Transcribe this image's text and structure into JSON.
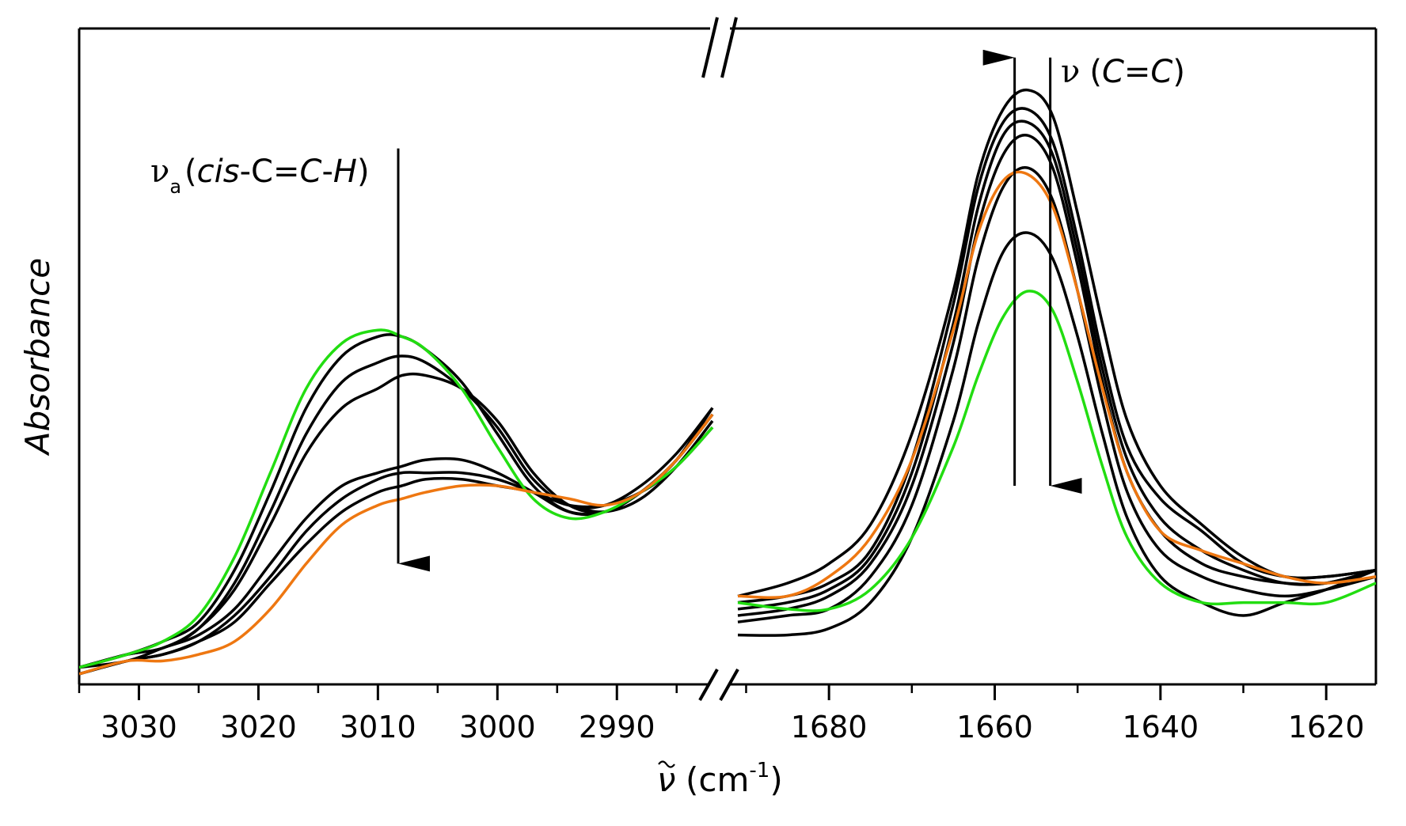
{
  "chart_data": {
    "type": "line",
    "title": "",
    "ylabel": "Absorbance",
    "xlabel": {
      "symbol": "ν",
      "unit_open": "(cm",
      "unit_exp": "-1",
      "unit_close": ")"
    },
    "colors": {
      "black": "#000000",
      "green": "#22dd11",
      "orange": "#ee7711"
    },
    "panels": [
      {
        "id": "left",
        "xlim": [
          3035,
          2982
        ],
        "ticks": [
          3030,
          3020,
          3010,
          3000,
          2990
        ],
        "tick_labels": [
          "3030",
          "3020",
          "3010",
          "3000",
          "2990"
        ],
        "annotation": {
          "nu": "ν",
          "sub": "a",
          "open": "(",
          "cis": "cis",
          "mid": "-C=",
          "c2": "C",
          "dash": "-",
          "h": "H",
          "close": ")"
        },
        "arrow": {
          "x": 3008.3,
          "from": 0.82,
          "to": 0.18,
          "direction": "down"
        },
        "series": [
          {
            "name": "green",
            "color": "green",
            "x": [
              3035,
              3031,
              3028,
              3025,
              3022,
              3019,
              3016,
              3013,
              3010,
              3008,
              3006,
              3003,
              3000,
              2997,
              2994,
              2991,
              2988,
              2985,
              2982
            ],
            "y": [
              0.02,
              0.04,
              0.06,
              0.1,
              0.19,
              0.32,
              0.45,
              0.52,
              0.54,
              0.53,
              0.51,
              0.45,
              0.36,
              0.28,
              0.25,
              0.26,
              0.29,
              0.33,
              0.39
            ]
          },
          {
            "name": "black-1",
            "color": "black",
            "x": [
              3035,
              3031,
              3028,
              3025,
              3022,
              3019,
              3016,
              3013,
              3010,
              3008,
              3006,
              3003,
              3000,
              2997,
              2994,
              2991,
              2988,
              2985,
              2982
            ],
            "y": [
              0.02,
              0.04,
              0.06,
              0.09,
              0.17,
              0.29,
              0.42,
              0.5,
              0.53,
              0.53,
              0.51,
              0.46,
              0.38,
              0.3,
              0.26,
              0.26,
              0.29,
              0.34,
              0.42
            ]
          },
          {
            "name": "black-2",
            "color": "black",
            "x": [
              3035,
              3031,
              3028,
              3025,
              3022,
              3019,
              3016,
              3013,
              3010,
              3008,
              3006,
              3003,
              3000,
              2997,
              2994,
              2991,
              2988,
              2985,
              2982
            ],
            "y": [
              0.02,
              0.04,
              0.05,
              0.08,
              0.15,
              0.26,
              0.38,
              0.46,
              0.49,
              0.5,
              0.49,
              0.45,
              0.39,
              0.31,
              0.27,
              0.27,
              0.3,
              0.35,
              0.42
            ]
          },
          {
            "name": "black-3",
            "color": "black",
            "x": [
              3035,
              3031,
              3028,
              3025,
              3022,
              3019,
              3016,
              3013,
              3010,
              3008,
              3006,
              3003,
              3000,
              2997,
              2994,
              2991,
              2988,
              2985,
              2982
            ],
            "y": [
              0.02,
              0.04,
              0.05,
              0.08,
              0.14,
              0.24,
              0.35,
              0.42,
              0.45,
              0.47,
              0.47,
              0.45,
              0.4,
              0.32,
              0.27,
              0.26,
              0.29,
              0.34,
              0.41
            ]
          },
          {
            "name": "black-4",
            "color": "black",
            "x": [
              3035,
              3031,
              3028,
              3025,
              3022,
              3019,
              3016,
              3013,
              3010,
              3008,
              3006,
              3003,
              3000,
              2997,
              2994,
              2991,
              2988,
              2985,
              2982
            ],
            "y": [
              0.02,
              0.03,
              0.05,
              0.07,
              0.11,
              0.18,
              0.25,
              0.3,
              0.32,
              0.33,
              0.34,
              0.34,
              0.32,
              0.29,
              0.26,
              0.26,
              0.29,
              0.34,
              0.41
            ]
          },
          {
            "name": "black-5",
            "color": "black",
            "x": [
              3035,
              3031,
              3028,
              3025,
              3022,
              3019,
              3016,
              3013,
              3010,
              3008,
              3006,
              3003,
              3000,
              2997,
              2994,
              2991,
              2988,
              2985,
              2982
            ],
            "y": [
              0.01,
              0.03,
              0.04,
              0.06,
              0.1,
              0.16,
              0.23,
              0.28,
              0.31,
              0.32,
              0.32,
              0.32,
              0.31,
              0.29,
              0.27,
              0.26,
              0.28,
              0.33,
              0.4
            ]
          },
          {
            "name": "black-6",
            "color": "black",
            "x": [
              3035,
              3031,
              3028,
              3025,
              3022,
              3019,
              3016,
              3013,
              3010,
              3008,
              3006,
              3003,
              3000,
              2997,
              2994,
              2991,
              2988,
              2985,
              2982
            ],
            "y": [
              0.01,
              0.03,
              0.04,
              0.06,
              0.09,
              0.15,
              0.21,
              0.26,
              0.29,
              0.3,
              0.31,
              0.31,
              0.3,
              0.29,
              0.27,
              0.27,
              0.29,
              0.33,
              0.39
            ]
          },
          {
            "name": "orange",
            "color": "orange",
            "x": [
              3035,
              3031,
              3028,
              3025,
              3022,
              3019,
              3016,
              3013,
              3010,
              3008,
              3006,
              3003,
              3000,
              2997,
              2994,
              2991,
              2988,
              2985,
              2982
            ],
            "y": [
              0.01,
              0.03,
              0.03,
              0.04,
              0.06,
              0.11,
              0.18,
              0.24,
              0.27,
              0.28,
              0.29,
              0.3,
              0.3,
              0.29,
              0.28,
              0.27,
              0.29,
              0.34,
              0.41
            ]
          }
        ]
      },
      {
        "id": "right",
        "xlim": [
          1691,
          1614
        ],
        "ticks": [
          1680,
          1660,
          1640,
          1620
        ],
        "tick_labels": [
          "1680",
          "1660",
          "1640",
          "1620"
        ],
        "annotation": {
          "nu": "ν",
          "open": "(",
          "c1": "C",
          "eq": "=",
          "c2": "C",
          "close": ")"
        },
        "arrows": [
          {
            "x": 1657.6,
            "from": 0.3,
            "to": 0.96,
            "direction": "up"
          },
          {
            "x": 1653.3,
            "from": 0.96,
            "to": 0.3,
            "direction": "down"
          }
        ],
        "series": [
          {
            "name": "green",
            "color": "green",
            "x": [
              1691,
              1685,
              1680,
              1675,
              1670,
              1665,
              1662,
              1659,
              1656,
              1653,
              1650,
              1647,
              1644,
              1640,
              1635,
              1630,
              1625,
              1620,
              1614
            ],
            "y": [
              0.12,
              0.11,
              0.11,
              0.14,
              0.22,
              0.36,
              0.47,
              0.56,
              0.6,
              0.57,
              0.46,
              0.33,
              0.22,
              0.15,
              0.12,
              0.12,
              0.12,
              0.12,
              0.15
            ]
          },
          {
            "name": "black-1",
            "color": "black",
            "x": [
              1691,
              1685,
              1680,
              1675,
              1670,
              1665,
              1662,
              1659,
              1656,
              1653,
              1650,
              1647,
              1644,
              1640,
              1635,
              1630,
              1625,
              1620,
              1614
            ],
            "y": [
              0.07,
              0.07,
              0.08,
              0.12,
              0.22,
              0.4,
              0.55,
              0.66,
              0.69,
              0.65,
              0.53,
              0.38,
              0.25,
              0.16,
              0.12,
              0.1,
              0.12,
              0.14,
              0.17
            ]
          },
          {
            "name": "black-2",
            "color": "black",
            "x": [
              1691,
              1685,
              1680,
              1675,
              1670,
              1665,
              1662,
              1659,
              1656,
              1653,
              1650,
              1647,
              1644,
              1640,
              1635,
              1630,
              1625,
              1620,
              1614
            ],
            "y": [
              0.09,
              0.1,
              0.11,
              0.16,
              0.27,
              0.48,
              0.65,
              0.76,
              0.79,
              0.74,
              0.6,
              0.43,
              0.29,
              0.2,
              0.16,
              0.14,
              0.13,
              0.14,
              0.16
            ]
          },
          {
            "name": "black-3",
            "color": "black",
            "x": [
              1691,
              1685,
              1680,
              1675,
              1670,
              1665,
              1662,
              1659,
              1656,
              1653,
              1650,
              1647,
              1644,
              1640,
              1635,
              1630,
              1625,
              1620,
              1614
            ],
            "y": [
              0.1,
              0.11,
              0.13,
              0.18,
              0.3,
              0.52,
              0.7,
              0.81,
              0.84,
              0.79,
              0.64,
              0.46,
              0.32,
              0.23,
              0.18,
              0.16,
              0.15,
              0.15,
              0.17
            ]
          },
          {
            "name": "black-4",
            "color": "black",
            "x": [
              1691,
              1685,
              1680,
              1675,
              1670,
              1665,
              1662,
              1659,
              1656,
              1653,
              1650,
              1647,
              1644,
              1640,
              1635,
              1630,
              1625,
              1620,
              1614
            ],
            "y": [
              0.11,
              0.12,
              0.14,
              0.19,
              0.32,
              0.55,
              0.73,
              0.84,
              0.86,
              0.81,
              0.66,
              0.48,
              0.34,
              0.25,
              0.2,
              0.17,
              0.15,
              0.15,
              0.17
            ]
          },
          {
            "name": "black-5",
            "color": "black",
            "x": [
              1691,
              1685,
              1680,
              1675,
              1670,
              1665,
              1662,
              1659,
              1656,
              1653,
              1650,
              1647,
              1644,
              1640,
              1635,
              1630,
              1625,
              1620,
              1614
            ],
            "y": [
              0.12,
              0.13,
              0.15,
              0.2,
              0.34,
              0.58,
              0.76,
              0.86,
              0.88,
              0.83,
              0.68,
              0.5,
              0.36,
              0.28,
              0.23,
              0.18,
              0.16,
              0.16,
              0.17
            ]
          },
          {
            "name": "black-6",
            "color": "black",
            "x": [
              1691,
              1685,
              1680,
              1675,
              1670,
              1665,
              1662,
              1659,
              1656,
              1653,
              1650,
              1647,
              1644,
              1640,
              1635,
              1630,
              1625,
              1620,
              1614
            ],
            "y": [
              0.13,
              0.15,
              0.18,
              0.24,
              0.38,
              0.6,
              0.78,
              0.88,
              0.91,
              0.87,
              0.72,
              0.55,
              0.4,
              0.3,
              0.24,
              0.19,
              0.16,
              0.16,
              0.17
            ]
          },
          {
            "name": "orange",
            "color": "orange",
            "x": [
              1691,
              1685,
              1680,
              1675,
              1670,
              1665,
              1662,
              1659,
              1656,
              1653,
              1650,
              1647,
              1644,
              1640,
              1635,
              1630,
              1625,
              1620,
              1614
            ],
            "y": [
              0.13,
              0.13,
              0.16,
              0.22,
              0.34,
              0.54,
              0.69,
              0.77,
              0.78,
              0.73,
              0.6,
              0.45,
              0.32,
              0.23,
              0.2,
              0.18,
              0.16,
              0.15,
              0.16
            ]
          }
        ]
      }
    ]
  }
}
